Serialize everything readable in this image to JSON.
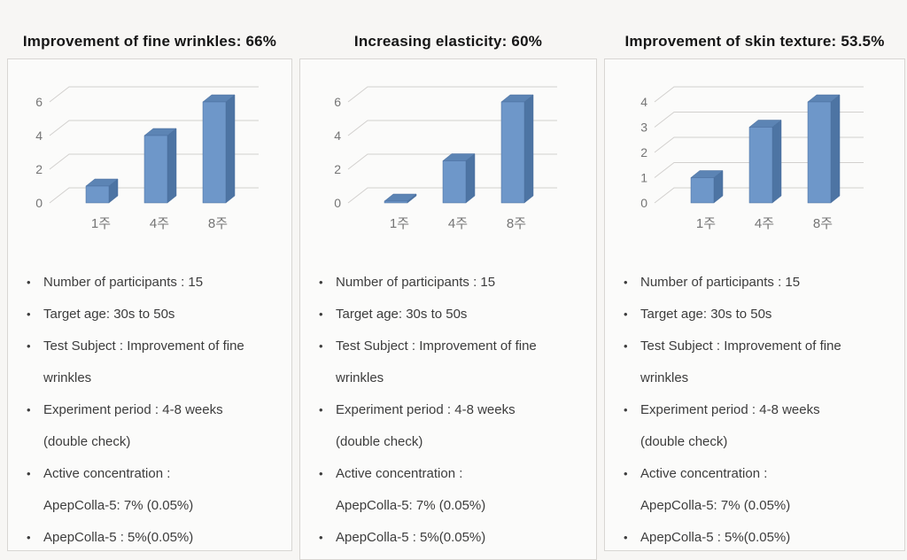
{
  "colors": {
    "page_bg": "#f7f6f4",
    "panel_bg": "#fbfbfa",
    "panel_border": "#d8d6d3",
    "title_text": "#161616",
    "body_text": "#3d3d3d",
    "tick_label": "#757575",
    "grid_line": "#d2d0ce",
    "bar_front": "#6e97c9",
    "bar_side": "#4d74a3",
    "bar_top": "#5c84b4",
    "bar_edge": "#4b6f9e"
  },
  "chart_data": [
    {
      "type": "bar",
      "style": "3d",
      "title": "Improvement of fine wrinkles: 66%",
      "categories": [
        "1주",
        "4주",
        "8주"
      ],
      "values": [
        1,
        4,
        6
      ],
      "xlabel": "",
      "ylabel": "",
      "ylim": [
        0,
        6
      ],
      "yticks": [
        0,
        2,
        4,
        6
      ],
      "grid": true,
      "legend": "none"
    },
    {
      "type": "bar",
      "style": "3d",
      "title": "Increasing elasticity: 60%",
      "categories": [
        "1주",
        "4주",
        "8주"
      ],
      "values": [
        0.1,
        2.5,
        6
      ],
      "xlabel": "",
      "ylabel": "",
      "ylim": [
        0,
        6
      ],
      "yticks": [
        0,
        2,
        4,
        6
      ],
      "grid": true,
      "legend": "none"
    },
    {
      "type": "bar",
      "style": "3d",
      "title": "Improvement of skin texture: 53.5%",
      "categories": [
        "1주",
        "4주",
        "8주"
      ],
      "values": [
        1,
        3,
        4
      ],
      "xlabel": "",
      "ylabel": "",
      "ylim": [
        0,
        4
      ],
      "yticks": [
        0,
        1,
        2,
        3,
        4
      ],
      "grid": true,
      "legend": "none"
    }
  ],
  "panels": [
    {
      "title": "Improvement of fine wrinkles: 66%",
      "bullets": [
        {
          "lines": [
            "Number of participants : 15"
          ]
        },
        {
          "lines": [
            "Target age: 30s to 50s"
          ]
        },
        {
          "lines": [
            "Test Subject : Improvement of fine",
            "wrinkles"
          ]
        },
        {
          "lines": [
            "Experiment period : 4-8 weeks",
            "(double check)"
          ]
        },
        {
          "lines": [
            "Active concentration :",
            "ApepColla-5: 7% (0.05%)"
          ]
        },
        {
          "lines": [
            "ApepColla-5 : 5%(0.05%)"
          ]
        }
      ]
    },
    {
      "title": "Increasing elasticity: 60%",
      "bullets": [
        {
          "lines": [
            "Number of participants : 15"
          ]
        },
        {
          "lines": [
            "Target age: 30s to 50s"
          ]
        },
        {
          "lines": [
            "Test Subject : Improvement of fine",
            "wrinkles"
          ]
        },
        {
          "lines": [
            "Experiment period : 4-8 weeks",
            "(double check)"
          ]
        },
        {
          "lines": [
            "Active concentration :",
            "ApepColla-5: 7% (0.05%)"
          ]
        },
        {
          "lines": [
            "ApepColla-5 : 5%(0.05%)"
          ]
        }
      ]
    },
    {
      "title": "Improvement of skin texture: 53.5%",
      "bullets": [
        {
          "lines": [
            "Number of participants : 15"
          ]
        },
        {
          "lines": [
            "Target age: 30s to 50s"
          ]
        },
        {
          "lines": [
            "Test Subject : Improvement of fine",
            "wrinkles"
          ]
        },
        {
          "lines": [
            "Experiment period : 4-8 weeks",
            "(double check)"
          ]
        },
        {
          "lines": [
            "Active concentration :",
            "ApepColla-5: 7% (0.05%)"
          ]
        },
        {
          "lines": [
            "ApepColla-5 : 5%(0.05%)"
          ]
        }
      ]
    }
  ]
}
